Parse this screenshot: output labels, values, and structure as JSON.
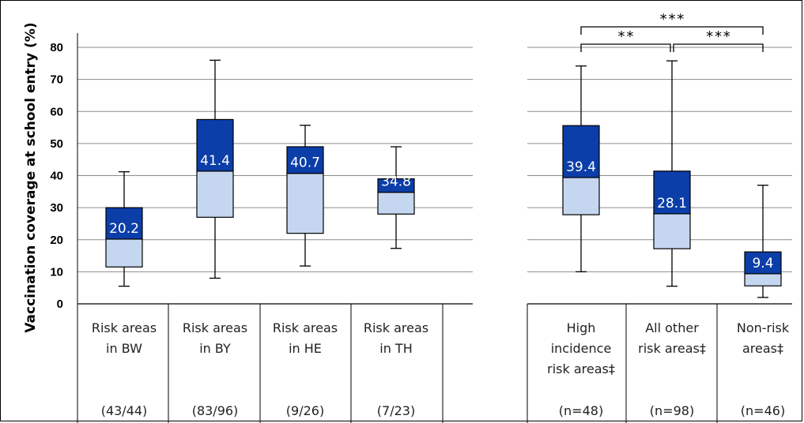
{
  "chart_data": {
    "type": "boxplot",
    "ylabel": "Vaccination coverage at school entry (%)",
    "ylim": [
      0,
      80
    ],
    "yticks": [
      0,
      10,
      20,
      30,
      40,
      50,
      60,
      70,
      80
    ],
    "grid": true,
    "colors": {
      "upper_box": "#0b3ea8",
      "lower_box": "#c5d6f0",
      "line": "#000000",
      "grid": "#8c8c8c"
    },
    "categories": [
      {
        "label": [
          "Risk areas",
          "in BW"
        ],
        "n": "(43/44)",
        "min": 5.5,
        "q1": 11.5,
        "median": 20.2,
        "q3": 30.0,
        "max": 41.2,
        "median_label": "20.2"
      },
      {
        "label": [
          "Risk areas",
          "in BY"
        ],
        "n": "(83/96)",
        "min": 8.0,
        "q1": 27.0,
        "median": 41.4,
        "q3": 57.5,
        "max": 76.0,
        "median_label": "41.4"
      },
      {
        "label": [
          "Risk areas",
          "in HE"
        ],
        "n": "(9/26)",
        "min": 11.8,
        "q1": 22.0,
        "median": 40.7,
        "q3": 49.0,
        "max": 55.7,
        "median_label": "40.7"
      },
      {
        "label": [
          "Risk areas",
          "in TH"
        ],
        "n": "(7/23)",
        "min": 17.3,
        "q1": 28.0,
        "median": 34.8,
        "q3": 39.0,
        "max": 49.0,
        "median_label": "34.8"
      },
      {
        "label": [
          "High",
          "incidence",
          "risk areas‡"
        ],
        "n": "(n=48)",
        "min": 10.0,
        "q1": 27.8,
        "median": 39.4,
        "q3": 55.6,
        "max": 74.2,
        "median_label": "39.4"
      },
      {
        "label": [
          "All other",
          "risk areas‡"
        ],
        "n": "(n=98)",
        "min": 5.5,
        "q1": 17.2,
        "median": 28.1,
        "q3": 41.4,
        "max": 75.8,
        "median_label": "28.1"
      },
      {
        "label": [
          "Non-risk",
          "areas‡"
        ],
        "n": "(n=46)",
        "min": 2.0,
        "q1": 5.6,
        "median": 9.4,
        "q3": 16.2,
        "max": 37.0,
        "median_label": "9.4"
      }
    ],
    "significance": [
      {
        "from": 4,
        "to": 6,
        "label": "***"
      },
      {
        "from": 4,
        "to": 5,
        "label": "**"
      },
      {
        "from": 5,
        "to": 6,
        "label": "***"
      }
    ]
  }
}
